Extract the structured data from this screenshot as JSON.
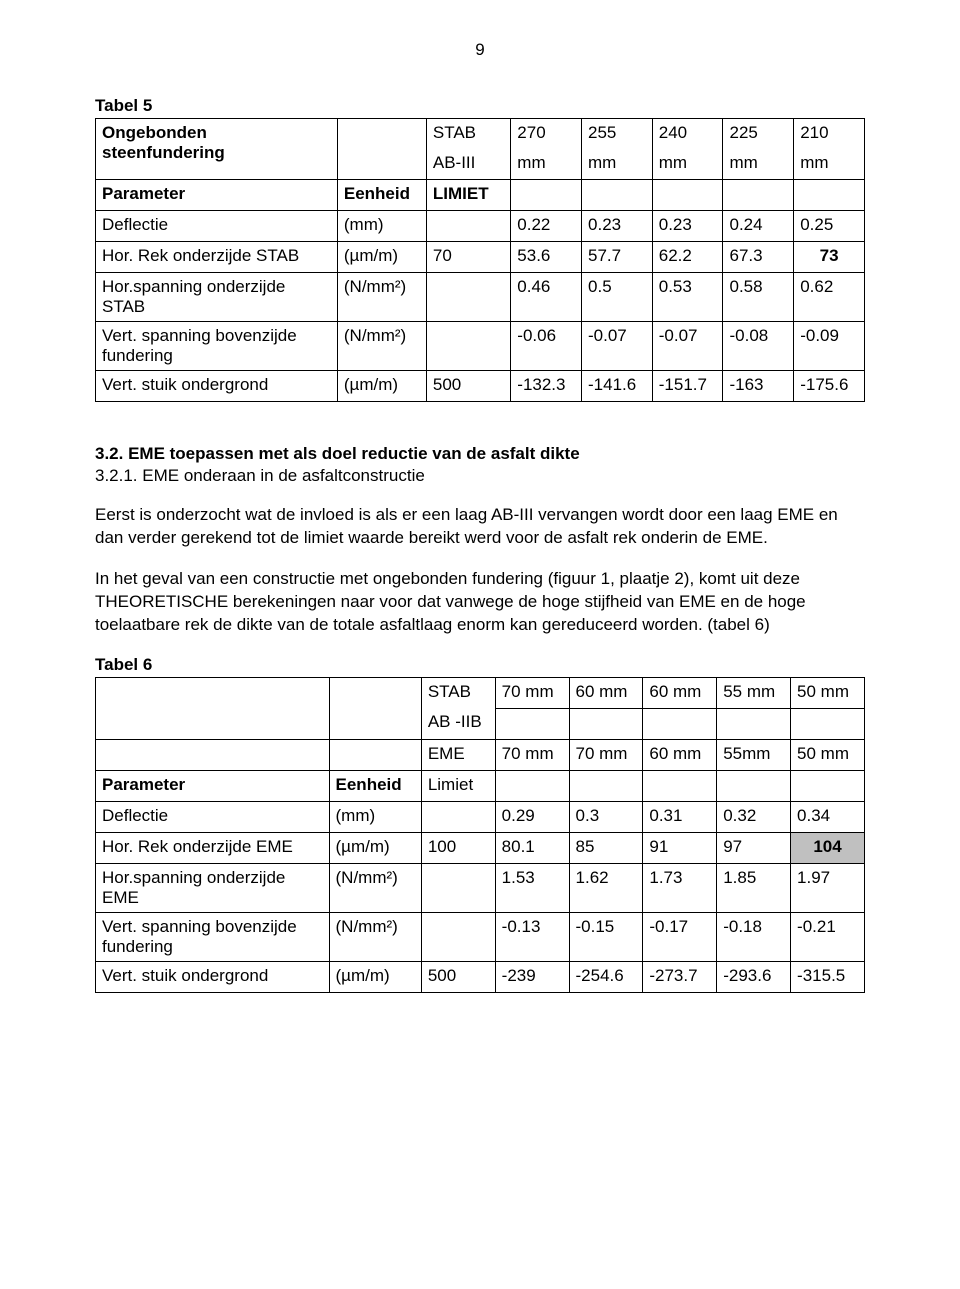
{
  "page_number": "9",
  "table5": {
    "caption": "Tabel 5",
    "head_r1": {
      "c0": "Ongebonden",
      "c2": "STAB",
      "c3": "270",
      "c4": "255",
      "c5": "240",
      "c6": "225",
      "c7": "210"
    },
    "head_r2": {
      "c0": "steenfundering",
      "c2": "AB-III",
      "c3": "mm",
      "c4": "mm",
      "c5": "mm",
      "c6": "mm",
      "c7": "mm"
    },
    "head_r3": {
      "c0": "Parameter",
      "c1": "Eenheid",
      "c2": "LIMIET"
    },
    "rows": [
      {
        "c0": "Deflectie",
        "c1": "(mm)",
        "c2": "",
        "c3": "0.22",
        "c4": "0.23",
        "c5": "0.23",
        "c6": "0.24",
        "c7": "0.25"
      },
      {
        "c0": "Hor. Rek onderzijde STAB",
        "c1": "(µm/m)",
        "c2": "70",
        "c3": "53.6",
        "c4": "57.7",
        "c5": "62.2",
        "c6": "67.3",
        "c7": "73",
        "bold7": true
      },
      {
        "c0": "Hor.spanning onderzijde",
        "c1": "(N/mm²)",
        "c2": "",
        "c3": "0.46",
        "c4": "0.5",
        "c5": "0.53",
        "c6": "0.58",
        "c7": "0.62"
      },
      {
        "c0": "STAB",
        "spanall": true
      },
      {
        "c0": "Vert. spanning bovenzijde",
        "c1": "(N/mm²)",
        "c2": "",
        "c3": "-0.06",
        "c4": "-0.07",
        "c5": "-0.07",
        "c6": "-0.08",
        "c7": "-0.09"
      },
      {
        "c0": "fundering",
        "spanall": true
      },
      {
        "c0": "Vert. stuik ondergrond",
        "c1": "(µm/m)",
        "c2": "500",
        "c3": "-132.3",
        "c4": "-141.6",
        "c5": "-151.7",
        "c6": "-163",
        "c7": "-175.6"
      }
    ]
  },
  "section321": "3.2. EME toepassen met als doel reductie van de asfalt dikte",
  "section3211": "3.2.1. EME onderaan in de asfaltconstructie",
  "para1": "Eerst is onderzocht wat de invloed is als er een laag AB-III vervangen wordt door een laag EME en dan verder gerekend tot de limiet waarde bereikt werd voor de asfalt rek onderin de EME.",
  "para2": "In het geval van een constructie met ongebonden fundering (figuur 1, plaatje 2), komt uit deze THEORETISCHE berekeningen naar voor dat vanwege de hoge stijfheid van EME en de hoge toelaatbare rek de dikte van de totale asfaltlaag enorm kan gereduceerd worden. (tabel 6)",
  "table6": {
    "caption": "Tabel 6",
    "head_r1": {
      "c2": "STAB",
      "c3": "70 mm",
      "c4": "60 mm",
      "c5": "60 mm",
      "c6": "55 mm",
      "c7": "50 mm"
    },
    "head_r2": {
      "c2": "AB -IIB"
    },
    "head_r3": {
      "c2": "EME",
      "c3": "70 mm",
      "c4": "70 mm",
      "c5": "60 mm",
      "c6": "55mm",
      "c7": "50 mm"
    },
    "head_r4": {
      "c0": "Parameter",
      "c1": "Eenheid",
      "c2": "Limiet"
    },
    "rows": [
      {
        "c0": "Deflectie",
        "c1": "(mm)",
        "c2": "",
        "c3": "0.29",
        "c4": "0.3",
        "c5": "0.31",
        "c6": "0.32",
        "c7": "0.34"
      },
      {
        "c0": "Hor. Rek onderzijde EME",
        "c1": "(µm/m)",
        "c2": "100",
        "c3": "80.1",
        "c4": "85",
        "c5": "91",
        "c6": "97",
        "c7": "104",
        "hl7": true,
        "bold7": true
      },
      {
        "c0": "Hor.spanning onderzijde",
        "c1": "(N/mm²)",
        "c2": "",
        "c3": "1.53",
        "c4": "1.62",
        "c5": "1.73",
        "c6": "1.85",
        "c7": "1.97"
      },
      {
        "c0": "EME",
        "spanall": true
      },
      {
        "c0": "Vert. spanning bovenzijde",
        "c1": "(N/mm²)",
        "c2": "",
        "c3": "-0.13",
        "c4": "-0.15",
        "c5": "-0.17",
        "c6": "-0.18",
        "c7": "-0.21"
      },
      {
        "c0": "fundering",
        "spanall": true
      },
      {
        "c0": "Vert. stuik ondergrond",
        "c1": "(µm/m)",
        "c2": "500",
        "c3": "-239",
        "c4": "-254.6",
        "c5": "-273.7",
        "c6": "-293.6",
        "c7": "-315.5"
      }
    ]
  }
}
